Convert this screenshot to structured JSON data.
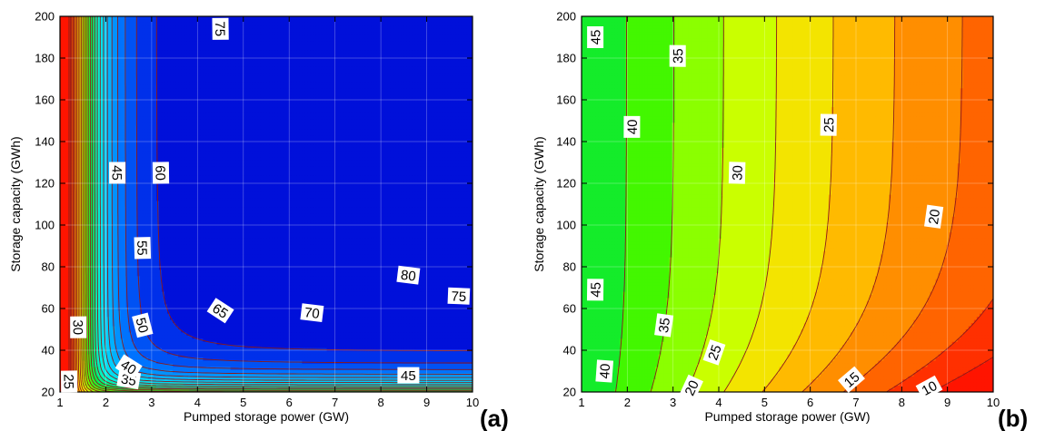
{
  "chart_data": [
    {
      "type": "contour",
      "panel_label": "(a)",
      "xlabel": "Pumped storage power  (GW)",
      "ylabel": "Storage capacity  (GWh)",
      "xlim": [
        1,
        10
      ],
      "ylim": [
        20,
        200
      ],
      "xticks": [
        "1",
        "2",
        "3",
        "4",
        "5",
        "6",
        "7",
        "8",
        "9",
        "10"
      ],
      "yticks": [
        "20",
        "40",
        "60",
        "80",
        "100",
        "120",
        "140",
        "160",
        "180",
        "200"
      ],
      "color_scale": "red-orange-yellow-green-cyan-blue (low to high)",
      "levels": [
        20,
        22.5,
        25,
        27.5,
        30,
        32.5,
        35,
        37.5,
        40,
        42.5,
        45,
        47.5,
        50,
        52.5,
        55,
        57.5,
        60,
        62.5,
        65,
        67.5,
        70,
        72.5,
        75,
        77.5,
        80,
        82.5
      ],
      "contour_labels": [
        {
          "text": "25",
          "x": 1.2,
          "y": 25
        },
        {
          "text": "30",
          "x": 1.4,
          "y": 51
        },
        {
          "text": "35",
          "x": 2.5,
          "y": 26
        },
        {
          "text": "40",
          "x": 2.5,
          "y": 32
        },
        {
          "text": "45",
          "x": 2.25,
          "y": 125
        },
        {
          "text": "50",
          "x": 2.8,
          "y": 52
        },
        {
          "text": "55",
          "x": 2.8,
          "y": 89
        },
        {
          "text": "60",
          "x": 3.2,
          "y": 125
        },
        {
          "text": "65",
          "x": 4.5,
          "y": 59
        },
        {
          "text": "70",
          "x": 6.5,
          "y": 58
        },
        {
          "text": "75",
          "x": 4.5,
          "y": 194
        },
        {
          "text": "75",
          "x": 9.7,
          "y": 66
        },
        {
          "text": "80",
          "x": 8.6,
          "y": 76
        },
        {
          "text": "45",
          "x": 8.6,
          "y": 28
        }
      ]
    },
    {
      "type": "contour",
      "panel_label": "(b)",
      "xlabel": "Pumped storage power  (GW)",
      "ylabel": "Storage capacity  (GWh)",
      "xlim": [
        1,
        10
      ],
      "ylim": [
        20,
        200
      ],
      "xticks": [
        "1",
        "2",
        "3",
        "4",
        "5",
        "6",
        "7",
        "8",
        "9",
        "10"
      ],
      "yticks": [
        "20",
        "40",
        "60",
        "80",
        "100",
        "120",
        "140",
        "160",
        "180",
        "200"
      ],
      "color_scale": "red-orange-yellow-green (low to high)",
      "levels": [
        5,
        10,
        15,
        20,
        25,
        30,
        35,
        40,
        45
      ],
      "contour_labels": [
        {
          "text": "45",
          "x": 1.3,
          "y": 190
        },
        {
          "text": "45",
          "x": 1.3,
          "y": 69
        },
        {
          "text": "40",
          "x": 2.1,
          "y": 147
        },
        {
          "text": "40",
          "x": 1.5,
          "y": 30
        },
        {
          "text": "35",
          "x": 3.1,
          "y": 181
        },
        {
          "text": "35",
          "x": 2.8,
          "y": 52
        },
        {
          "text": "30",
          "x": 4.4,
          "y": 125
        },
        {
          "text": "25",
          "x": 6.4,
          "y": 148
        },
        {
          "text": "25",
          "x": 3.9,
          "y": 39
        },
        {
          "text": "20",
          "x": 3.4,
          "y": 22
        },
        {
          "text": "20",
          "x": 8.7,
          "y": 104
        },
        {
          "text": "15",
          "x": 6.9,
          "y": 26
        },
        {
          "text": "10",
          "x": 8.6,
          "y": 22
        }
      ]
    }
  ]
}
